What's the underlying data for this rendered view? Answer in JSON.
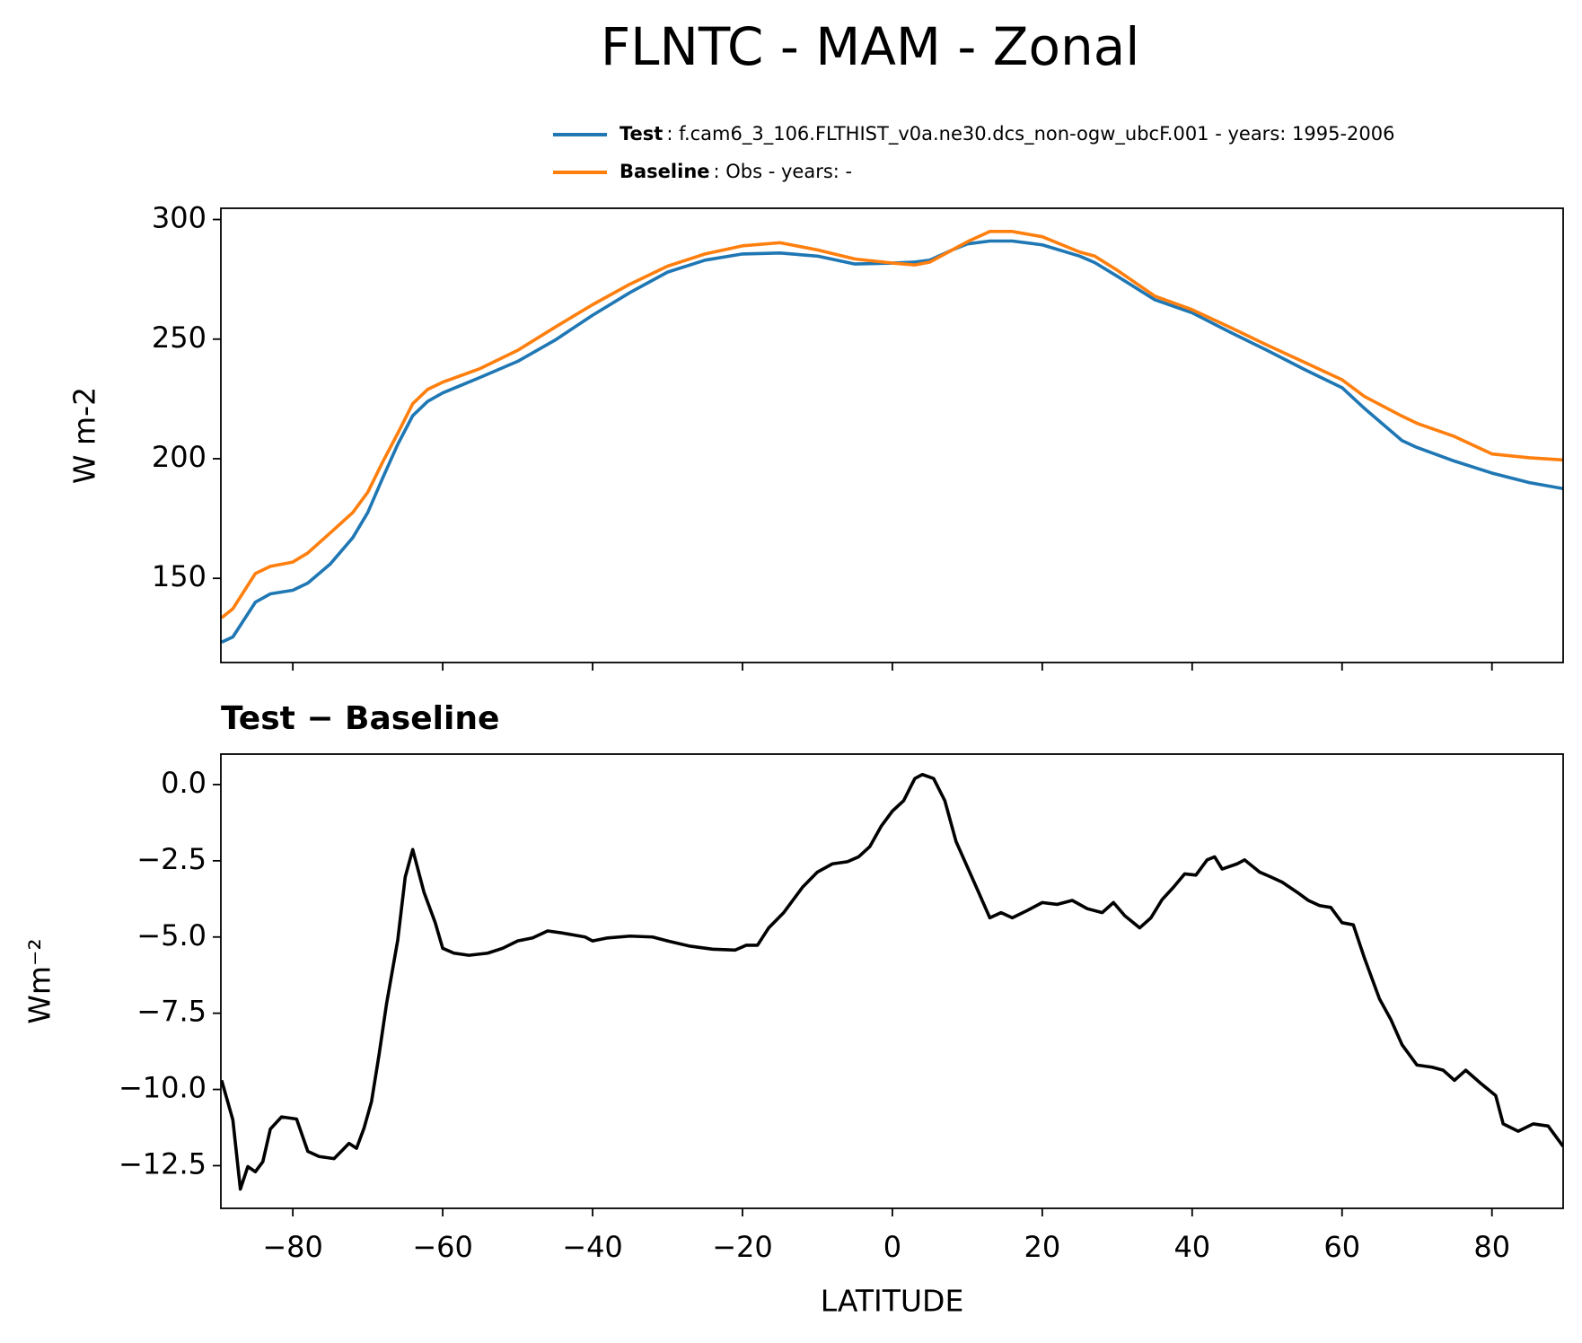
{
  "chart_data": [
    {
      "type": "line",
      "title": "FLNTC - MAM - Zonal",
      "ylabel": "W m-2",
      "x": [
        -89.5,
        -88,
        -85,
        -83,
        -80,
        -78,
        -75,
        -72,
        -70,
        -68,
        -66,
        -64,
        -62,
        -60,
        -55,
        -50,
        -45,
        -40,
        -35,
        -30,
        -25,
        -20,
        -15,
        -10,
        -5,
        0,
        3,
        5,
        8,
        10,
        13,
        16,
        20,
        25,
        27,
        30,
        35,
        40,
        45,
        50,
        55,
        60,
        63,
        68,
        70,
        75,
        80,
        85,
        89.5
      ],
      "series": [
        {
          "name": "Test",
          "legend_text": ": f.cam6_3_106.FLTHIST_v0a.ne30.dcs_non-ogw_ubcF.001 - years: 1995-2006",
          "color": "#1f77b4",
          "values": [
            123.3,
            125.5,
            140,
            143.5,
            145,
            148,
            156,
            167,
            177.5,
            192,
            206,
            218,
            224,
            227.5,
            234,
            240.7,
            249.6,
            260,
            269.5,
            278,
            283,
            285.6,
            286,
            284.7,
            281.4,
            281.8,
            282.2,
            283,
            287.3,
            289.8,
            291,
            291,
            289.4,
            284.7,
            282,
            276.3,
            266.5,
            261,
            253,
            245.3,
            237.3,
            229.7,
            221,
            207.6,
            204.7,
            199,
            194,
            190,
            187.5
          ]
        },
        {
          "name": "Baseline",
          "legend_text": ": Obs - years: -",
          "color": "#ff7f0e",
          "values": [
            133.5,
            137.3,
            152,
            155,
            156.8,
            160.6,
            169,
            177.5,
            186,
            198.7,
            210.6,
            223,
            229,
            232,
            237.7,
            245.3,
            255,
            264.4,
            273,
            280.5,
            285.6,
            289,
            290.3,
            287.3,
            283.5,
            281.8,
            281,
            282.2,
            287.3,
            290.7,
            295,
            295,
            292.8,
            286.4,
            284.7,
            278.8,
            268,
            262.3,
            255,
            247.5,
            240.3,
            233,
            226,
            217.8,
            214.8,
            209.3,
            202,
            200.4,
            199.5
          ]
        }
      ],
      "xlim": [
        -89.6,
        89.5
      ],
      "xticks": [
        -80,
        -60,
        -40,
        -20,
        0,
        20,
        40,
        60,
        80
      ],
      "ylim": [
        114.8,
        304.7
      ],
      "yticks": [
        150,
        200,
        250,
        300
      ],
      "legend": "upper right"
    },
    {
      "type": "line",
      "title": "Test − Baseline",
      "xlabel": "LATITUDE",
      "ylabel": "Wm⁻²",
      "x": [
        -89.5,
        -88,
        -87,
        -86,
        -85,
        -84,
        -83,
        -81.5,
        -79.5,
        -78,
        -76.5,
        -74.5,
        -72.5,
        -71.5,
        -70.5,
        -69.5,
        -68.5,
        -67.5,
        -66,
        -65,
        -64,
        -62.5,
        -61,
        -60,
        -58.5,
        -56.5,
        -54,
        -52,
        -50,
        -48,
        -46,
        -44,
        -41,
        -40,
        -38,
        -35,
        -32,
        -30,
        -27,
        -24,
        -21,
        -19.5,
        -18,
        -16.5,
        -14.5,
        -12,
        -10,
        -8,
        -6,
        -4.5,
        -3,
        -1.5,
        0,
        1.5,
        3,
        4,
        5.5,
        7,
        8.5,
        10,
        11.5,
        13,
        14.5,
        16,
        18,
        20,
        22,
        24,
        26,
        28,
        29.5,
        31,
        33,
        34.5,
        36,
        37.5,
        39,
        40.5,
        42,
        43,
        44,
        46,
        47,
        49,
        50.5,
        52,
        54,
        55.5,
        57,
        58.5,
        60,
        61.5,
        63,
        65,
        66.5,
        68,
        70,
        72,
        73.5,
        75,
        76.5,
        78.5,
        80.5,
        81.5,
        83.5,
        85.5,
        87.5,
        89.5
      ],
      "series": [
        {
          "color": "#000000",
          "values": [
            -9.7,
            -11.0,
            -13.27,
            -12.53,
            -12.7,
            -12.37,
            -11.3,
            -10.9,
            -10.97,
            -12.03,
            -12.2,
            -12.27,
            -11.77,
            -11.93,
            -11.27,
            -10.4,
            -8.87,
            -7.2,
            -5.1,
            -3.03,
            -2.13,
            -3.53,
            -4.53,
            -5.37,
            -5.53,
            -5.6,
            -5.53,
            -5.37,
            -5.13,
            -5.03,
            -4.8,
            -4.87,
            -5.0,
            -5.13,
            -5.03,
            -4.97,
            -5.0,
            -5.13,
            -5.3,
            -5.4,
            -5.43,
            -5.27,
            -5.27,
            -4.7,
            -4.2,
            -3.37,
            -2.87,
            -2.6,
            -2.53,
            -2.37,
            -2.03,
            -1.37,
            -0.87,
            -0.53,
            0.2,
            0.33,
            0.2,
            -0.53,
            -1.87,
            -2.7,
            -3.53,
            -4.37,
            -4.2,
            -4.37,
            -4.13,
            -3.87,
            -3.93,
            -3.8,
            -4.07,
            -4.2,
            -3.87,
            -4.3,
            -4.7,
            -4.37,
            -3.77,
            -3.37,
            -2.93,
            -2.97,
            -2.47,
            -2.37,
            -2.77,
            -2.6,
            -2.47,
            -2.87,
            -3.03,
            -3.2,
            -3.53,
            -3.8,
            -3.97,
            -4.03,
            -4.53,
            -4.6,
            -5.7,
            -7.03,
            -7.7,
            -8.53,
            -9.2,
            -9.27,
            -9.37,
            -9.7,
            -9.37,
            -9.8,
            -10.2,
            -11.13,
            -11.37,
            -11.13,
            -11.2,
            -11.87
          ]
        }
      ],
      "xlim": [
        -89.6,
        89.5
      ],
      "xticks": [
        {
          "value": -80,
          "label": "−80"
        },
        {
          "value": -60,
          "label": "−60"
        },
        {
          "value": -40,
          "label": "−40"
        },
        {
          "value": -20,
          "label": "−20"
        },
        0,
        20,
        40,
        60,
        80
      ],
      "ylim": [
        -13.9,
        1.0
      ],
      "yticks": [
        {
          "value": 0,
          "label": "0.0"
        },
        {
          "value": -2.5,
          "label": "−2.5"
        },
        {
          "value": -5,
          "label": "−5.0"
        },
        {
          "value": -7.5,
          "label": "−7.5"
        },
        {
          "value": -10,
          "label": "−10.0"
        },
        {
          "value": -12.5,
          "label": "−12.5"
        }
      ]
    }
  ]
}
